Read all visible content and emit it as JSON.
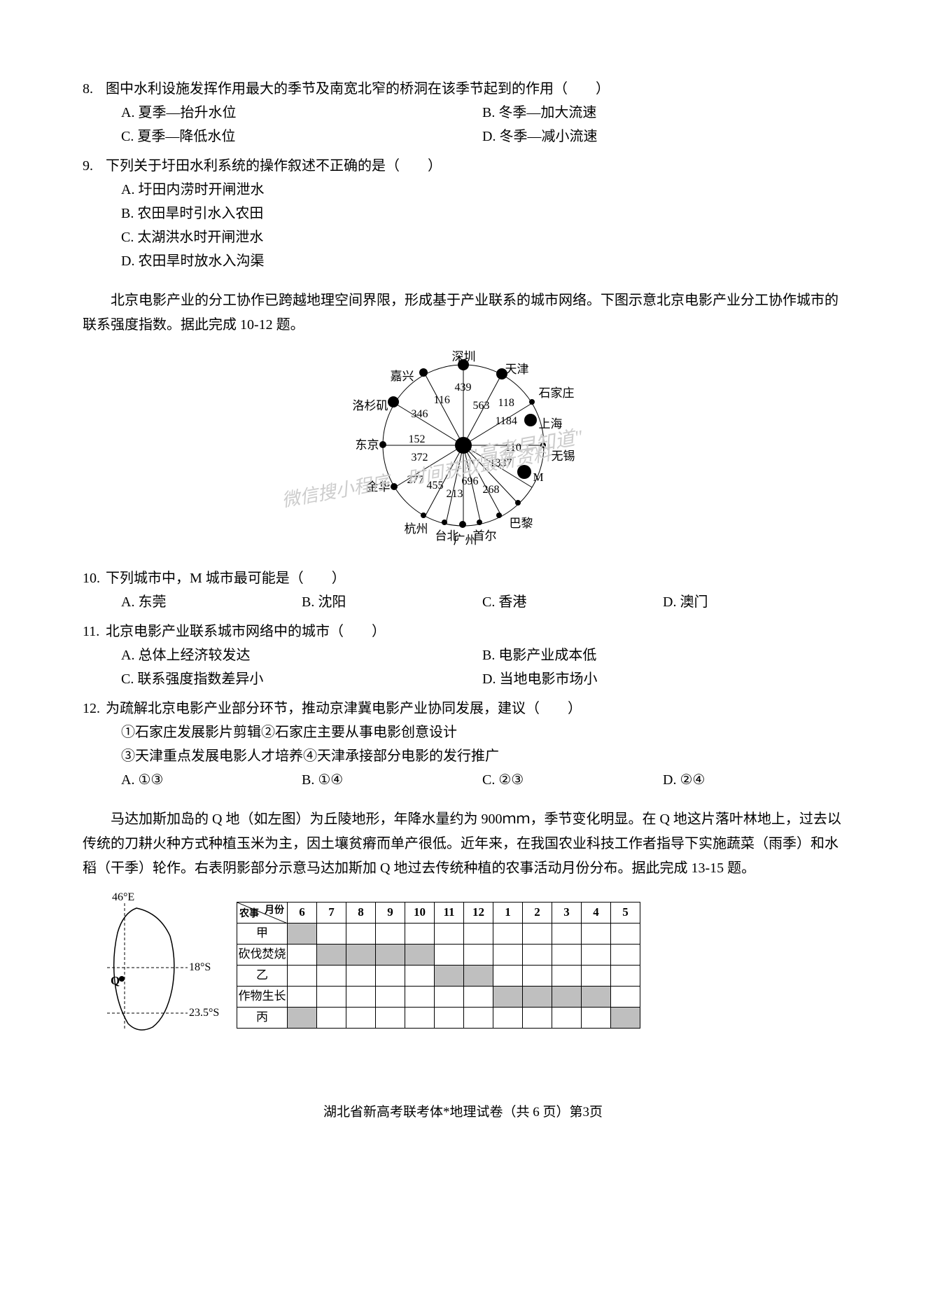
{
  "q8": {
    "num": "8.",
    "text": "图中水利设施发挥作用最大的季节及南宽北窄的桥洞在该季节起到的作用（　　）",
    "A": "A. 夏季—抬升水位",
    "B": "B. 冬季—加大流速",
    "C": "C. 夏季—降低水位",
    "D": "D. 冬季—减小流速"
  },
  "q9": {
    "num": "9.",
    "text": "下列关于圩田水利系统的操作叙述不正确的是（　　）",
    "A": "A. 圩田内涝时开闸泄水",
    "B": "B. 农田旱时引水入农田",
    "C": "C. 太湖洪水时开闸泄水",
    "D": "D. 农田旱时放水入沟渠"
  },
  "passage1": "北京电影产业的分工协作已跨越地理空间界限，形成基于产业联系的城市网络。下图示意北京电影产业分工协作城市的联系强度指数。据此完成 10-12 题。",
  "network": {
    "cities": [
      "嘉兴",
      "深圳",
      "天津",
      "石家庄",
      "洛杉矶",
      "上海",
      "东京",
      "无锡",
      "金华",
      "M",
      "杭州",
      "台北",
      "首尔",
      "巴黎",
      "广州"
    ],
    "values": [
      "439",
      "116",
      "563",
      "118",
      "346",
      "1184",
      "152",
      "110",
      "372",
      "1337",
      "277",
      "455",
      "213",
      "696",
      "268"
    ]
  },
  "q10": {
    "num": "10.",
    "text": "下列城市中，M 城市最可能是（　　）",
    "A": "A. 东莞",
    "B": "B. 沈阳",
    "C": "C. 香港",
    "D": "D. 澳门"
  },
  "q11": {
    "num": "11.",
    "text": "北京电影产业联系城市网络中的城市（　　）",
    "A": "A. 总体上经济较发达",
    "B": "B. 电影产业成本低",
    "C": "C. 联系强度指数差异小",
    "D": "D. 当地电影市场小"
  },
  "q12": {
    "num": "12.",
    "text": "为疏解北京电影产业部分环节，推动京津冀电影产业协同发展，建议（　　）",
    "s1": "①石家庄发展影片剪辑②石家庄主要从事电影创意设计",
    "s2": "③天津重点发展电影人才培养④天津承接部分电影的发行推广",
    "A": "A. ①③",
    "B": "B. ①④",
    "C": "C. ②③",
    "D": "D. ②④"
  },
  "passage2": "马达加斯加岛的 Q 地（如左图）为丘陵地形，年降水量约为 900ｍｍ，季节变化明显。在 Q 地这片落叶林地上，过去以传统的刀耕火种方式种植玉米为主，因土壤贫瘠而单产很低。近年来，在我国农业科技工作者指导下实施蔬菜（雨季）和水稻（干季）轮作。右表阴影部分示意马达加斯加 Q 地过去传统种植的农事活动月份分布。据此完成 13-15 题。",
  "map": {
    "lon": "46°E",
    "lat1": "18°S",
    "lat2": "23.5°S",
    "q": "Q"
  },
  "table": {
    "diag_top": "月份",
    "diag_bottom": "农事",
    "months": [
      "6",
      "7",
      "8",
      "9",
      "10",
      "11",
      "12",
      "1",
      "2",
      "3",
      "4",
      "5"
    ],
    "rows": [
      "甲",
      "砍伐焚烧",
      "乙",
      "作物生长",
      "丙"
    ],
    "shade": {
      "甲": [
        1,
        0,
        0,
        0,
        0,
        0,
        0,
        0,
        0,
        0,
        0,
        0
      ],
      "砍伐焚烧": [
        0,
        1,
        1,
        1,
        1,
        0,
        0,
        0,
        0,
        0,
        0,
        0
      ],
      "乙": [
        0,
        0,
        0,
        0,
        0,
        1,
        1,
        0,
        0,
        0,
        0,
        0
      ],
      "作物生长": [
        0,
        0,
        0,
        0,
        0,
        0,
        0,
        1,
        1,
        1,
        1,
        0
      ],
      "丙": [
        1,
        0,
        0,
        0,
        0,
        0,
        0,
        0,
        0,
        0,
        0,
        1
      ]
    }
  },
  "watermark": {
    "wm1": "\"高考早知道\"",
    "wm2": "微信搜小程序　时间获取最新资料"
  },
  "footer": "湖北省新高考联考体*地理试卷（共 6 页）第3页"
}
